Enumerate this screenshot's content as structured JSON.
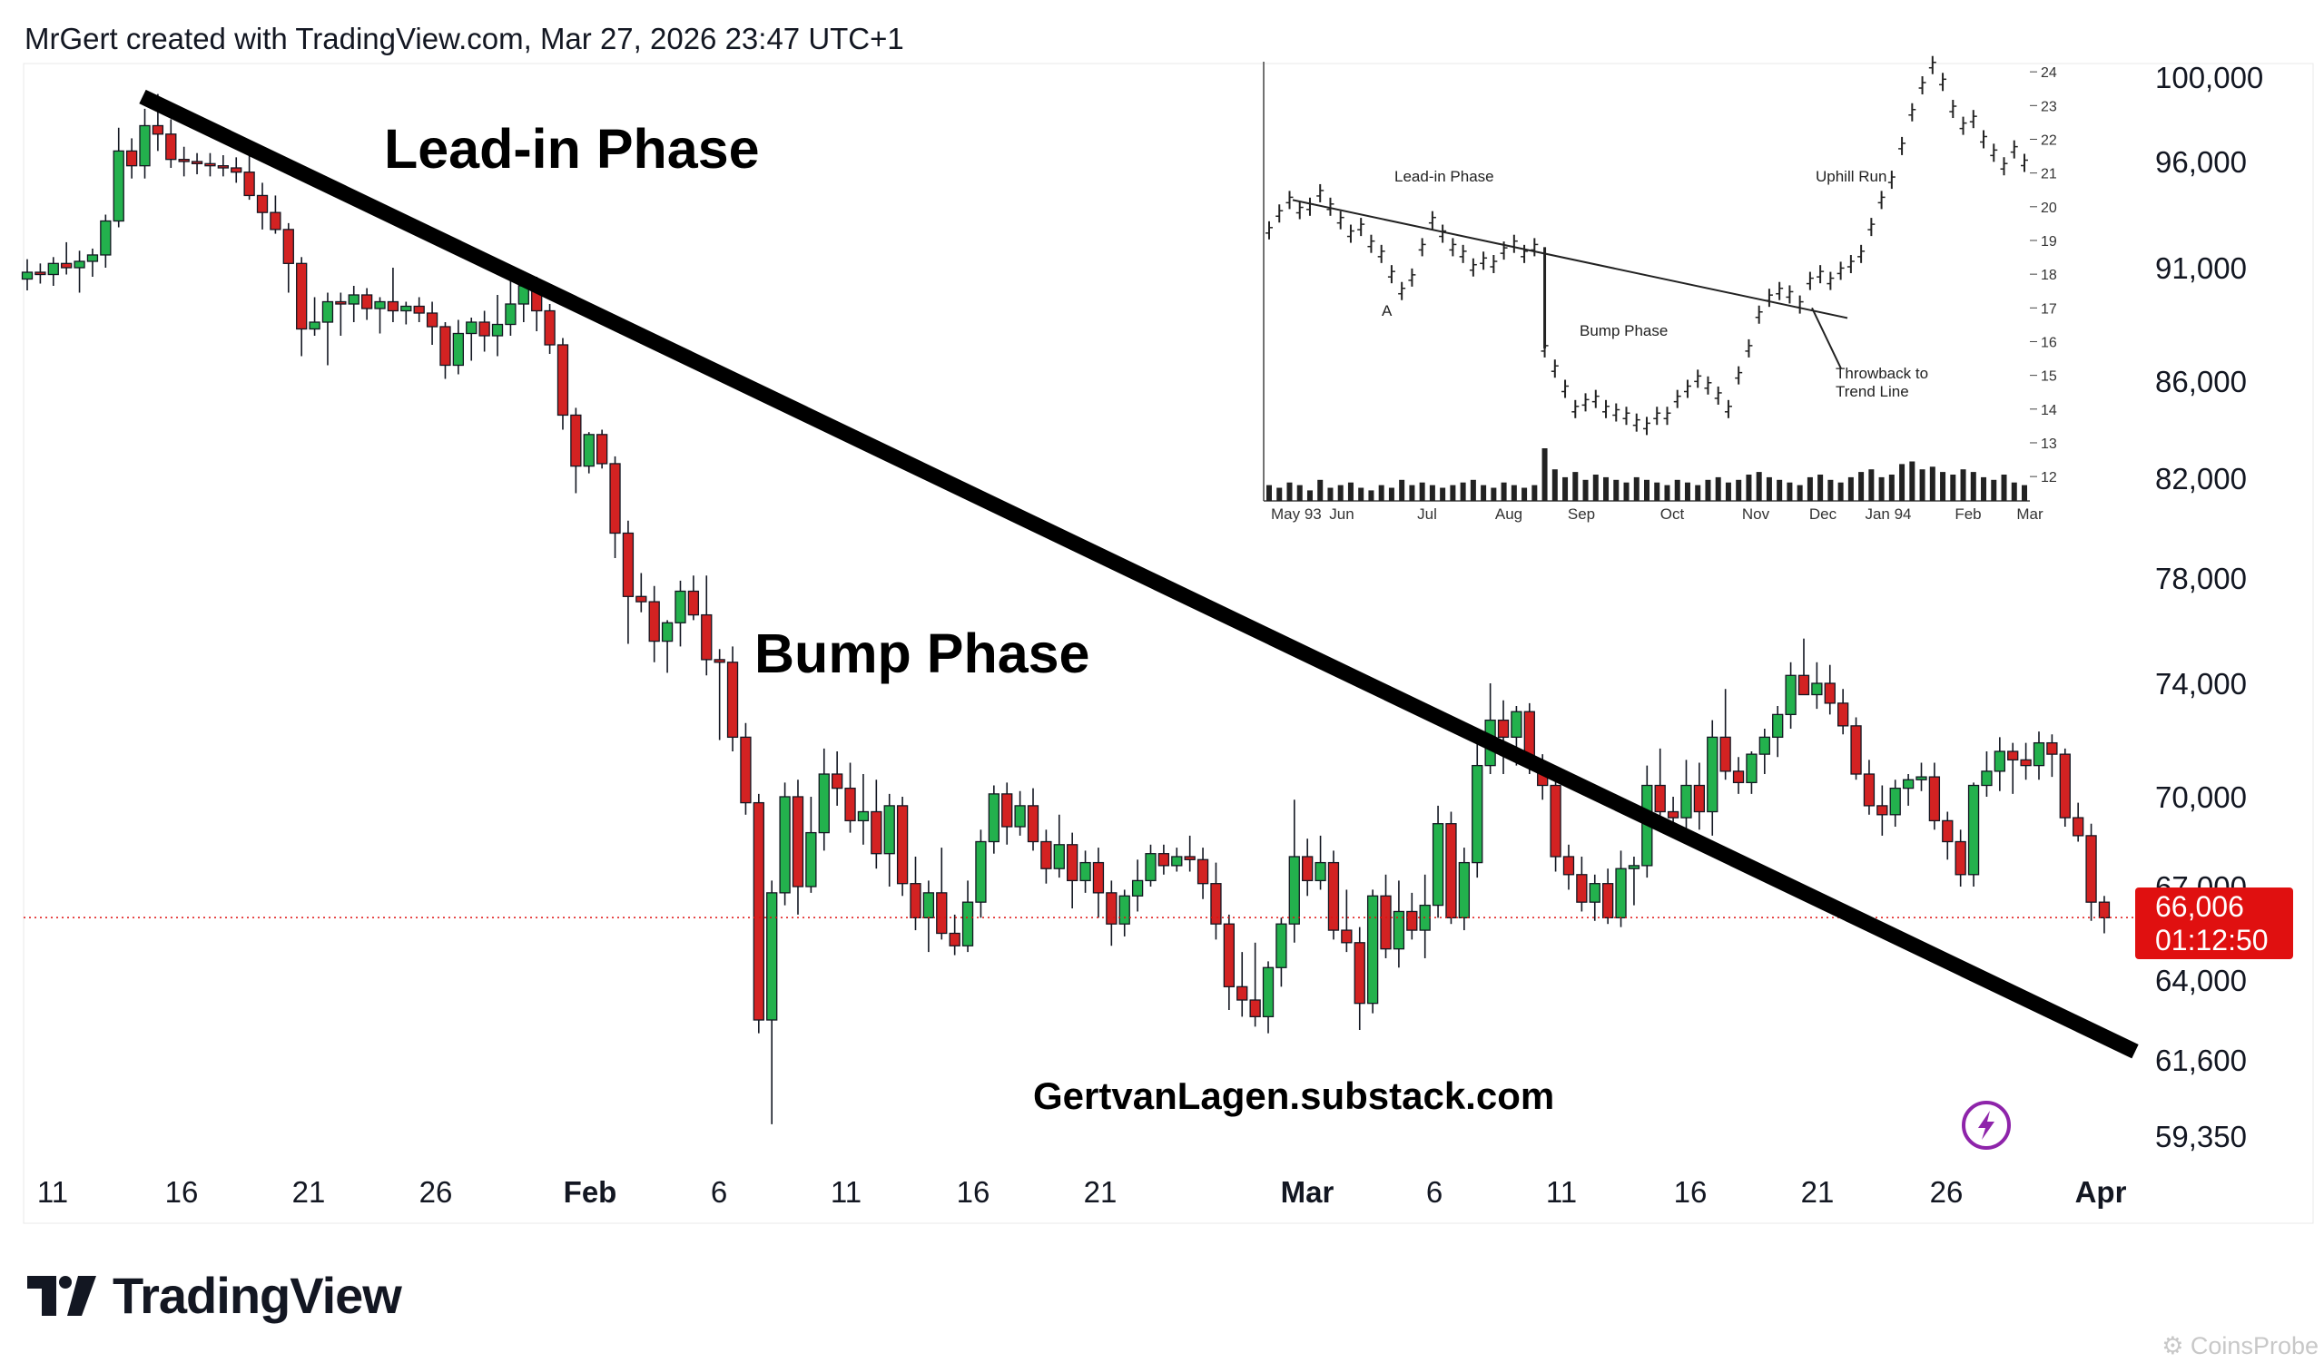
{
  "header": "MrGert created with TradingView.com, Mar 27, 2026 23:47 UTC+1",
  "brand": "TradingView",
  "watermark": "CoinsProbe",
  "colors": {
    "up": "#23b14d",
    "down": "#d32222",
    "price_tag": "#e01010",
    "lightning": "#8e24aa"
  },
  "icons": [
    "tradingview-logo-icon",
    "lightning-icon"
  ],
  "chart_data": {
    "type": "candlestick",
    "ylim": [
      58000,
      102500
    ],
    "y_ticks": [
      "100,000",
      "96,000",
      "91,000",
      "86,000",
      "82,000",
      "78,000",
      "74,000",
      "70,000",
      "67,000",
      "64,000",
      "61,600",
      "59,350"
    ],
    "x_ticks": [
      {
        "label": "11",
        "bold": false
      },
      {
        "label": "16",
        "bold": false
      },
      {
        "label": "21",
        "bold": false
      },
      {
        "label": "26",
        "bold": false
      },
      {
        "label": "Feb",
        "bold": true
      },
      {
        "label": "6",
        "bold": false
      },
      {
        "label": "11",
        "bold": false
      },
      {
        "label": "16",
        "bold": false
      },
      {
        "label": "21",
        "bold": false
      },
      {
        "label": "Mar",
        "bold": true
      },
      {
        "label": "6",
        "bold": false
      },
      {
        "label": "11",
        "bold": false
      },
      {
        "label": "16",
        "bold": false
      },
      {
        "label": "21",
        "bold": false
      },
      {
        "label": "26",
        "bold": false
      },
      {
        "label": "Apr",
        "bold": true
      }
    ],
    "current_price": "66,006",
    "countdown": "01:12:50",
    "current_price_value": 66006,
    "trend_line": {
      "start_price": 98000,
      "end_price": 63000
    },
    "annotations": [
      "Lead-in Phase",
      "Bump Phase",
      "GertvanLagen.substack.com"
    ],
    "candles": [
      [
        90500,
        91400,
        90000,
        90800
      ],
      [
        90800,
        91200,
        90300,
        90700
      ],
      [
        90700,
        91500,
        90200,
        91200
      ],
      [
        91200,
        92200,
        90700,
        91000
      ],
      [
        91000,
        91800,
        89900,
        91300
      ],
      [
        91300,
        91900,
        90600,
        91600
      ],
      [
        91600,
        93500,
        91000,
        93200
      ],
      [
        93200,
        97600,
        92900,
        96500
      ],
      [
        96500,
        97100,
        95200,
        95800
      ],
      [
        95800,
        98500,
        95200,
        97700
      ],
      [
        97700,
        99200,
        96500,
        97300
      ],
      [
        97300,
        98000,
        95700,
        96100
      ],
      [
        96100,
        96700,
        95300,
        96000
      ],
      [
        96000,
        96400,
        95400,
        95900
      ],
      [
        95900,
        96400,
        95300,
        95800
      ],
      [
        95800,
        96300,
        95300,
        95700
      ],
      [
        95700,
        96200,
        95000,
        95500
      ],
      [
        95500,
        96300,
        94200,
        94400
      ],
      [
        94400,
        95000,
        92800,
        93600
      ],
      [
        93600,
        94400,
        92600,
        92800
      ],
      [
        92800,
        93100,
        89900,
        91200
      ],
      [
        91200,
        91500,
        87100,
        88300
      ],
      [
        88300,
        89700,
        88000,
        88600
      ],
      [
        88600,
        89900,
        86700,
        89500
      ],
      [
        89500,
        89900,
        88000,
        89400
      ],
      [
        89400,
        90200,
        88600,
        89800
      ],
      [
        89800,
        90100,
        88700,
        89200
      ],
      [
        89200,
        89700,
        88100,
        89500
      ],
      [
        89500,
        91000,
        88600,
        89100
      ],
      [
        89100,
        89500,
        88500,
        89300
      ],
      [
        89300,
        89700,
        88600,
        89000
      ],
      [
        89000,
        89500,
        87600,
        88400
      ],
      [
        88400,
        88600,
        86100,
        86700
      ],
      [
        86700,
        88700,
        86300,
        88100
      ],
      [
        88100,
        88800,
        86900,
        88600
      ],
      [
        88600,
        89100,
        87300,
        88000
      ],
      [
        88000,
        89800,
        87100,
        88500
      ],
      [
        88500,
        90500,
        88000,
        89400
      ],
      [
        89400,
        90500,
        88600,
        90200
      ],
      [
        90200,
        90600,
        88200,
        89100
      ],
      [
        89100,
        89400,
        87200,
        87600
      ],
      [
        87600,
        87900,
        84000,
        84600
      ],
      [
        84600,
        84900,
        81400,
        82500
      ],
      [
        82500,
        83900,
        82200,
        83800
      ],
      [
        83800,
        84000,
        82400,
        82600
      ],
      [
        82600,
        82900,
        78800,
        79800
      ],
      [
        79800,
        80300,
        75500,
        77300
      ],
      [
        77300,
        78200,
        76700,
        77100
      ],
      [
        77100,
        77700,
        74800,
        75600
      ],
      [
        75600,
        76400,
        74400,
        76300
      ],
      [
        76300,
        77900,
        75400,
        77500
      ],
      [
        77500,
        78100,
        76400,
        76600
      ],
      [
        76600,
        78100,
        74300,
        74900
      ],
      [
        74900,
        75300,
        72000,
        74800
      ],
      [
        74800,
        75400,
        71600,
        72100
      ],
      [
        72100,
        72600,
        69400,
        69800
      ],
      [
        69800,
        70100,
        62400,
        62800
      ],
      [
        62800,
        67200,
        59700,
        66800
      ],
      [
        66800,
        70500,
        66400,
        70000
      ],
      [
        70000,
        70600,
        66100,
        67000
      ],
      [
        67000,
        70000,
        66800,
        68800
      ],
      [
        68800,
        71700,
        68200,
        70800
      ],
      [
        70800,
        71600,
        69700,
        70300
      ],
      [
        70300,
        71200,
        68800,
        69200
      ],
      [
        69200,
        70800,
        68400,
        69500
      ],
      [
        69500,
        70600,
        67600,
        68100
      ],
      [
        68100,
        70100,
        67000,
        69700
      ],
      [
        69700,
        70000,
        66700,
        67100
      ],
      [
        67100,
        68000,
        65600,
        66000
      ],
      [
        66000,
        67200,
        64900,
        66800
      ],
      [
        66800,
        68300,
        65300,
        65500
      ],
      [
        65500,
        66100,
        64800,
        65100
      ],
      [
        65100,
        67200,
        64900,
        66500
      ],
      [
        66500,
        68900,
        66000,
        68500
      ],
      [
        68500,
        70400,
        68100,
        70100
      ],
      [
        70100,
        70500,
        68400,
        69000
      ],
      [
        69000,
        70200,
        68700,
        69700
      ],
      [
        69700,
        70300,
        68200,
        68500
      ],
      [
        68500,
        68900,
        67100,
        67600
      ],
      [
        67600,
        69400,
        67300,
        68400
      ],
      [
        68400,
        68800,
        66300,
        67200
      ],
      [
        67200,
        68200,
        66800,
        67800
      ],
      [
        67800,
        68300,
        66000,
        66800
      ],
      [
        66800,
        67200,
        65100,
        65800
      ],
      [
        65800,
        66900,
        65400,
        66700
      ],
      [
        66700,
        67900,
        66200,
        67200
      ],
      [
        67200,
        68400,
        67000,
        68100
      ],
      [
        68100,
        68400,
        67400,
        67700
      ],
      [
        67700,
        68300,
        67500,
        68000
      ],
      [
        68000,
        68700,
        67500,
        67900
      ],
      [
        67900,
        68300,
        66600,
        67100
      ],
      [
        67100,
        67800,
        65300,
        65800
      ],
      [
        65800,
        66100,
        63100,
        63800
      ],
      [
        63800,
        64900,
        62900,
        63400
      ],
      [
        63400,
        65200,
        62600,
        62900
      ],
      [
        62900,
        64600,
        62400,
        64400
      ],
      [
        64400,
        66000,
        63800,
        65800
      ],
      [
        65800,
        69900,
        65200,
        68000
      ],
      [
        68000,
        68600,
        66700,
        67200
      ],
      [
        67200,
        68700,
        66900,
        67800
      ],
      [
        67800,
        68200,
        65300,
        65600
      ],
      [
        65600,
        66900,
        64900,
        65200
      ],
      [
        65200,
        65700,
        62500,
        63300
      ],
      [
        63300,
        66900,
        63000,
        66700
      ],
      [
        66700,
        67400,
        64700,
        65000
      ],
      [
        65000,
        67200,
        64400,
        66200
      ],
      [
        66200,
        66800,
        65300,
        65600
      ],
      [
        65600,
        67400,
        64700,
        66400
      ],
      [
        66400,
        69700,
        66000,
        69100
      ],
      [
        69100,
        69500,
        65800,
        66000
      ],
      [
        66000,
        68300,
        65600,
        67800
      ],
      [
        67800,
        72400,
        67300,
        71100
      ],
      [
        71100,
        74000,
        70800,
        72700
      ],
      [
        72700,
        73400,
        70800,
        72100
      ],
      [
        72100,
        73200,
        71100,
        73000
      ],
      [
        73000,
        73300,
        70800,
        71200
      ],
      [
        71200,
        71500,
        69900,
        70400
      ],
      [
        70400,
        70800,
        67500,
        68000
      ],
      [
        68000,
        68400,
        66900,
        67400
      ],
      [
        67400,
        68000,
        66200,
        66500
      ],
      [
        66500,
        67400,
        65900,
        67100
      ],
      [
        67100,
        67600,
        65800,
        66000
      ],
      [
        66000,
        68200,
        65700,
        67600
      ],
      [
        67600,
        68000,
        66400,
        67700
      ],
      [
        67700,
        71100,
        67300,
        70400
      ],
      [
        70400,
        71700,
        68900,
        69500
      ],
      [
        69500,
        70000,
        68900,
        69300
      ],
      [
        69300,
        71300,
        68900,
        70400
      ],
      [
        70400,
        71200,
        68900,
        69500
      ],
      [
        69500,
        72700,
        68700,
        72100
      ],
      [
        72100,
        73800,
        70600,
        70900
      ],
      [
        70900,
        71400,
        70100,
        70500
      ],
      [
        70500,
        71600,
        70100,
        71500
      ],
      [
        71500,
        72400,
        70800,
        72100
      ],
      [
        72100,
        73200,
        71400,
        72900
      ],
      [
        72900,
        74800,
        72400,
        74300
      ],
      [
        74300,
        75700,
        73600,
        73600
      ],
      [
        73600,
        74800,
        73100,
        74000
      ],
      [
        74000,
        74700,
        72900,
        73300
      ],
      [
        73300,
        73800,
        72200,
        72500
      ],
      [
        72500,
        72800,
        70600,
        70800
      ],
      [
        70800,
        71300,
        69400,
        69700
      ],
      [
        69700,
        70400,
        68700,
        69400
      ],
      [
        69400,
        70600,
        69000,
        70300
      ],
      [
        70300,
        70800,
        69700,
        70600
      ],
      [
        70600,
        71200,
        70200,
        70700
      ],
      [
        70700,
        71200,
        68900,
        69200
      ],
      [
        69200,
        69500,
        67900,
        68500
      ],
      [
        68500,
        68900,
        67000,
        67400
      ],
      [
        67400,
        70500,
        67000,
        70400
      ],
      [
        70400,
        71600,
        70000,
        70900
      ],
      [
        70900,
        72100,
        70200,
        71600
      ],
      [
        71600,
        71900,
        70100,
        71300
      ],
      [
        71300,
        71900,
        70600,
        71100
      ],
      [
        71100,
        72300,
        70600,
        71900
      ],
      [
        71900,
        72200,
        70700,
        71500
      ],
      [
        71500,
        71700,
        69000,
        69300
      ],
      [
        69300,
        69800,
        68500,
        68700
      ],
      [
        68700,
        69100,
        65900,
        66500
      ],
      [
        66500,
        66700,
        65500,
        66000
      ]
    ]
  },
  "inset": {
    "labels": [
      "Lead-in Phase",
      "A",
      "Bump Phase",
      "Uphill Run",
      "Throwback to",
      "Trend Line"
    ],
    "x_ticks": [
      "May 93",
      "Jun",
      "Jul",
      "Aug",
      "Sep",
      "Oct",
      "Nov",
      "Dec",
      "Jan 94",
      "Feb",
      "Mar"
    ],
    "y_ticks": [
      "24",
      "23",
      "22",
      "21",
      "20",
      "19",
      "18",
      "17",
      "16",
      "15",
      "14",
      "13",
      "12"
    ],
    "ylim": [
      11.6,
      24.3
    ],
    "chart_data": {
      "type": "line",
      "series": [
        {
          "values": [
            19.3,
            19.8,
            20.2,
            19.9,
            20.0,
            20.4,
            20.0,
            19.6,
            19.2,
            19.4,
            18.9,
            18.6,
            18.0,
            17.5,
            17.9,
            18.8,
            19.6,
            19.2,
            18.8,
            18.6,
            18.2,
            18.4,
            18.3,
            18.7,
            18.9,
            18.6,
            18.8,
            15.8,
            15.2,
            14.6,
            14.0,
            14.2,
            14.3,
            14.0,
            13.9,
            13.8,
            13.6,
            13.5,
            13.8,
            13.8,
            14.3,
            14.6,
            14.9,
            14.7,
            14.4,
            14.0,
            15.0,
            15.8,
            16.8,
            17.3,
            17.5,
            17.4,
            17.1,
            17.8,
            18.0,
            17.8,
            18.1,
            18.3,
            18.6,
            19.4,
            20.2,
            20.8,
            21.8,
            22.8,
            23.6,
            24.2,
            23.7,
            22.9,
            22.4,
            22.6,
            22.0,
            21.6,
            21.2,
            21.7,
            21.3
          ]
        }
      ],
      "volume": [
        0.3,
        0.25,
        0.35,
        0.3,
        0.2,
        0.4,
        0.25,
        0.3,
        0.35,
        0.25,
        0.2,
        0.3,
        0.25,
        0.4,
        0.3,
        0.35,
        0.3,
        0.25,
        0.3,
        0.35,
        0.4,
        0.3,
        0.25,
        0.35,
        0.3,
        0.25,
        0.3,
        1.0,
        0.6,
        0.45,
        0.55,
        0.4,
        0.5,
        0.45,
        0.4,
        0.35,
        0.45,
        0.4,
        0.35,
        0.3,
        0.4,
        0.35,
        0.3,
        0.4,
        0.45,
        0.35,
        0.4,
        0.5,
        0.55,
        0.45,
        0.4,
        0.35,
        0.3,
        0.45,
        0.5,
        0.4,
        0.35,
        0.45,
        0.55,
        0.6,
        0.45,
        0.5,
        0.7,
        0.75,
        0.6,
        0.65,
        0.55,
        0.5,
        0.6,
        0.55,
        0.45,
        0.4,
        0.5,
        0.35,
        0.3
      ]
    }
  }
}
